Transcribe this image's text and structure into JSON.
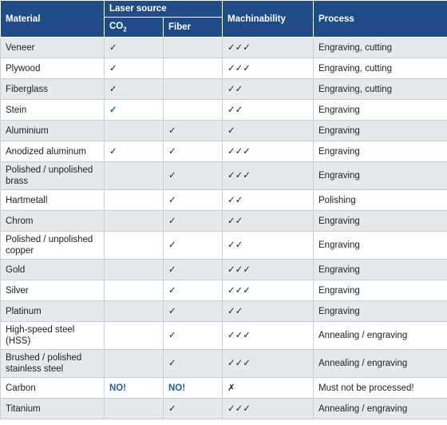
{
  "header": {
    "material": "Material",
    "laser_source": "Laser source",
    "co2": {
      "main": "CO",
      "sub": "2"
    },
    "fiber": "Fiber",
    "machinability": "Machinability",
    "process": "Process"
  },
  "table": {
    "header_color": "#1f4b87",
    "stripe_color": "#e5e8ed",
    "accent_color": "#1f5fa8",
    "accent_cells": [
      [
        3,
        1
      ],
      [
        15,
        1
      ],
      [
        15,
        2
      ]
    ],
    "rows": [
      [
        "Veneer",
        "✓",
        null,
        "✓✓✓",
        "Engraving, cutting"
      ],
      [
        "Plywood",
        "✓",
        null,
        "✓✓✓",
        "Engraving, cutting"
      ],
      [
        "Fiberglass",
        "✓",
        null,
        "✓✓",
        "Engraving, cutting"
      ],
      [
        "Stein",
        "✓",
        null,
        "✓✓",
        "Engraving"
      ],
      [
        "Aluminium",
        null,
        "✓",
        "✓",
        "Engraving"
      ],
      [
        "Anodized aluminum",
        "✓",
        "✓",
        "✓✓✓",
        "Engraving"
      ],
      [
        "Polished / unpolished\nbrass",
        null,
        "✓",
        "✓✓✓",
        "Engraving"
      ],
      [
        "Hartmetall",
        null,
        "✓",
        "✓✓",
        "Polishing"
      ],
      [
        "Chrom",
        null,
        "✓",
        "✓✓",
        "Engraving"
      ],
      [
        "Polished / unpolished\ncopper",
        null,
        "✓",
        "✓✓",
        "Engraving"
      ],
      [
        "Gold",
        null,
        "✓",
        "✓✓✓",
        "Engraving"
      ],
      [
        "Silver",
        null,
        "✓",
        "✓✓✓",
        "Engraving"
      ],
      [
        "Platinum",
        null,
        "✓",
        "✓✓",
        "Engraving"
      ],
      [
        "High-speed steel\n(HSS)",
        null,
        "✓",
        "✓✓✓",
        "Annealing / engraving"
      ],
      [
        "Brushed / polished\nstainless steel",
        null,
        "✓",
        "✓✓✓",
        "Annealing / engraving"
      ],
      [
        "Carbon",
        "NO!",
        "NO!",
        "✗",
        "Must not be processed!"
      ],
      [
        "Titanium",
        null,
        "✓",
        "✓✓✓",
        "Annealing / engraving"
      ]
    ]
  }
}
